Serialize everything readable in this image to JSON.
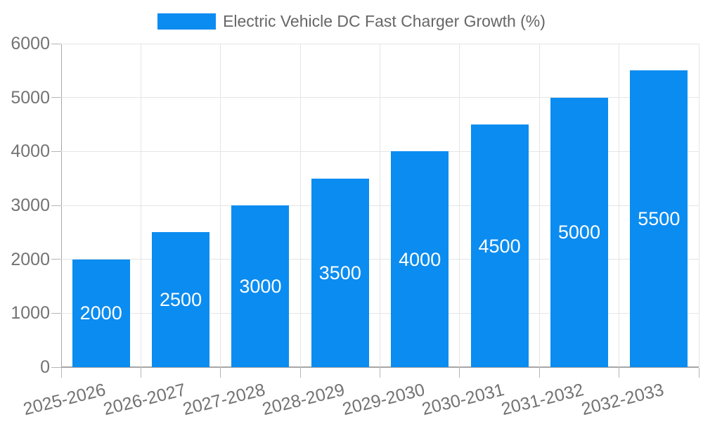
{
  "chart_data": {
    "type": "bar",
    "title": "",
    "legend_label": "Electric Vehicle DC Fast Charger Growth (%)",
    "legend_position": "top",
    "categories": [
      "2025-2026",
      "2026-2027",
      "2027-2028",
      "2028-2029",
      "2029-2030",
      "2030-2031",
      "2031-2032",
      "2032-2033"
    ],
    "values": [
      2000,
      2500,
      3000,
      3500,
      4000,
      4500,
      5000,
      5500
    ],
    "xlabel": "",
    "ylabel": "",
    "ylim": [
      0,
      6000
    ],
    "yticks": [
      0,
      1000,
      2000,
      3000,
      4000,
      5000,
      6000
    ],
    "grid": true,
    "x_tick_rotation_deg": -14,
    "datalabels_inside_bars": true,
    "colors": {
      "bar": "#0b8cf0",
      "grid": "#e5e5e5",
      "axis": "#a6a6a6",
      "tick": "#b5b5b5",
      "tick_text": "#737373",
      "legend_text": "#666666",
      "datalabel_text": "#ffffff"
    }
  }
}
